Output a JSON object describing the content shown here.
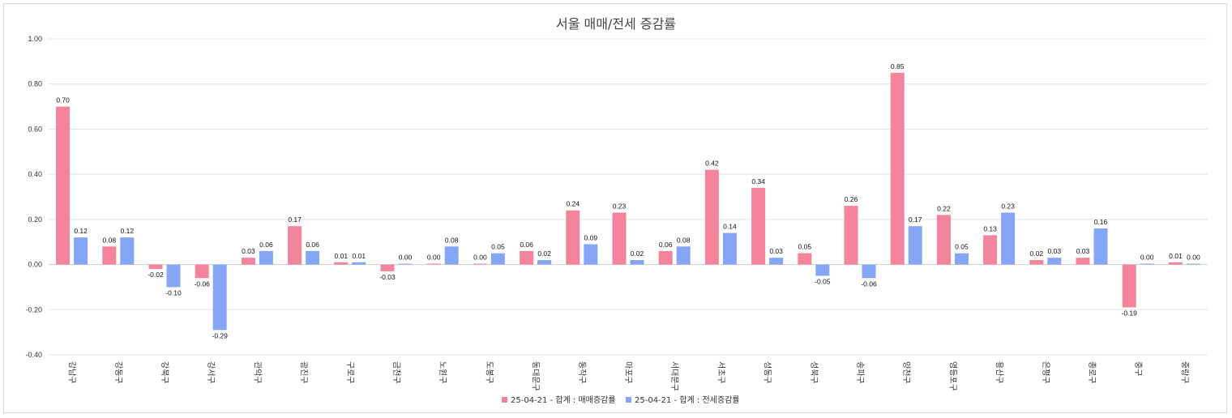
{
  "chart_data": {
    "type": "bar",
    "title": "서울 매매/전세 증감률",
    "xlabel": "",
    "ylabel": "",
    "ylim": [
      -0.4,
      1.0
    ],
    "yticks": [
      -0.4,
      -0.2,
      0.0,
      0.2,
      0.4,
      0.6,
      0.8,
      1.0
    ],
    "ytick_labels": [
      "-0.40",
      "-0.20",
      "0.00",
      "0.20",
      "0.40",
      "0.60",
      "0.80",
      "1.00"
    ],
    "grid": true,
    "legend_position": "bottom",
    "categories": [
      "강남구",
      "강동구",
      "강북구",
      "강서구",
      "관악구",
      "광진구",
      "구로구",
      "금천구",
      "노원구",
      "도봉구",
      "동대문구",
      "동작구",
      "마포구",
      "서대문구",
      "서초구",
      "성동구",
      "성북구",
      "송파구",
      "양천구",
      "영등포구",
      "용산구",
      "은평구",
      "종로구",
      "중구",
      "중랑구"
    ],
    "series": [
      {
        "name": "25-04-21 - 합계 : 매매증감률",
        "color": "#f4849c",
        "values": [
          0.7,
          0.08,
          -0.02,
          -0.06,
          0.03,
          0.17,
          0.01,
          -0.03,
          0.0,
          0.0,
          0.06,
          0.24,
          0.23,
          0.06,
          0.42,
          0.34,
          0.05,
          0.26,
          0.85,
          0.22,
          0.13,
          0.02,
          0.03,
          -0.19,
          0.01
        ],
        "labels": [
          "0.70",
          "0.08",
          "-0.02",
          "-0.06",
          "0.03",
          "0.17",
          "0.01",
          "-0.03",
          "0.00",
          "0.00",
          "0.06",
          "0.24",
          "0.23",
          "0.06",
          "0.42",
          "0.34",
          "0.05",
          "0.26",
          "0.85",
          "0.22",
          "0.13",
          "0.02",
          "0.03",
          "-0.19",
          "0.01"
        ]
      },
      {
        "name": "25-04-21 - 합계 : 전세증감률",
        "color": "#85a5f5",
        "values": [
          0.12,
          0.12,
          -0.1,
          -0.29,
          0.06,
          0.06,
          0.01,
          0.0,
          0.08,
          0.05,
          0.02,
          0.09,
          0.02,
          0.08,
          0.14,
          0.03,
          -0.05,
          -0.06,
          0.17,
          0.05,
          0.23,
          0.03,
          0.16,
          0.0,
          0.0
        ],
        "labels": [
          "0.12",
          "0.12",
          "-0.10",
          "-0.29",
          "0.06",
          "0.06",
          "0.01",
          "0.00",
          "0.08",
          "0.05",
          "0.02",
          "0.09",
          "0.02",
          "0.08",
          "0.14",
          "0.03",
          "-0.05",
          "-0.06",
          "0.17",
          "0.05",
          "0.23",
          "0.03",
          "0.16",
          "0.00",
          "0.00"
        ]
      }
    ]
  }
}
